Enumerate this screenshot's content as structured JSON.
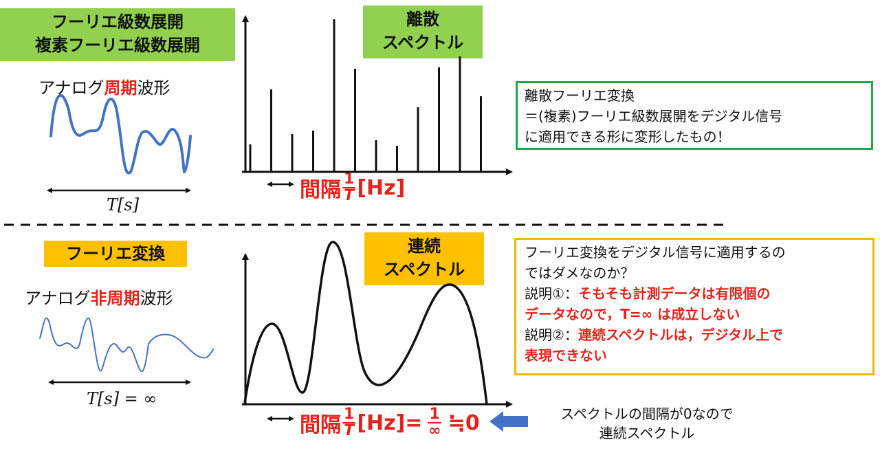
{
  "top": {
    "title_badge_line1": "フーリエ級数展開",
    "title_badge_line2": "複素フーリエ級数展開",
    "wave_label_pre": "アナログ",
    "wave_label_highlight": "周期",
    "wave_label_post": "波形",
    "period_label": "T[s]",
    "spectrum_badge_line1": "離散",
    "spectrum_badge_line2": "スペクトル",
    "interval_label": "間隔",
    "interval_frac_num": "1",
    "interval_frac_den": "T",
    "interval_unit": "[Hz]",
    "note_line1": "離散フーリエ変換",
    "note_line2": "＝(複素)フーリエ級数展開をデジタル信号",
    "note_line3": "に適用できる形に変形したもの！"
  },
  "bottom": {
    "title_badge": "フーリエ変換",
    "wave_label_pre": "アナログ",
    "wave_label_highlight": "非周期",
    "wave_label_post": "波形",
    "period_label": "T[s] = ∞",
    "spectrum_badge_line1": "連続",
    "spectrum_badge_line2": "スペクトル",
    "interval_label": "間隔",
    "interval_frac_num": "1",
    "interval_frac_den": "T",
    "interval_unit": "[Hz]=",
    "interval_frac2_num": "1",
    "interval_frac2_den": "∞",
    "interval_result": "≒0",
    "arrow_note_line1": "スペクトルの間隔が0なので",
    "arrow_note_line2": "連続スペクトル",
    "note_line1": "フーリエ変換をデジタル信号に適用するの",
    "note_line2": "ではダメなのか？",
    "note_line3_pre": "説明①：",
    "note_line3_red": "そもそも計測データは有限個の",
    "note_line4_red": "データなので，T=∞ は成立しない",
    "note_line5_pre": "説明②：",
    "note_line5_red": "連続スペクトルは，デジタル上で",
    "note_line6_red": "表現できない"
  },
  "chart_data": {
    "type": "bar",
    "values": [
      40,
      120,
      55,
      60,
      222,
      150,
      46,
      38,
      94,
      152,
      168,
      110
    ]
  },
  "colors": {
    "green": "#92d050",
    "orange": "#ffc000",
    "red": "#e3231b",
    "blue": "#4472c4"
  }
}
